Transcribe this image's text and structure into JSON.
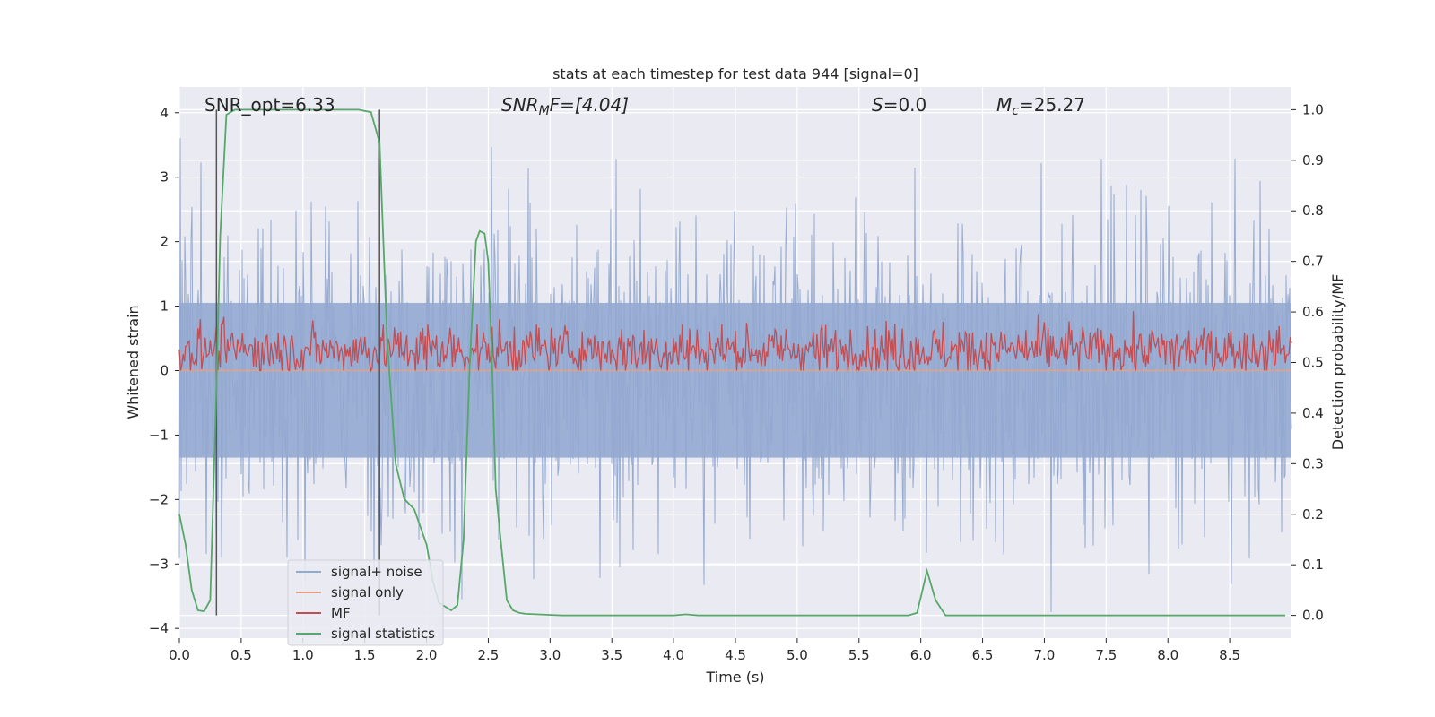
{
  "chart_data": {
    "type": "line",
    "title": "stats at each timestep for test data 944 [signal=0]",
    "xlabel": "Time (s)",
    "ylabel": "Whitened strain",
    "ylabel_right": "Detection probability/MF",
    "xlim": [
      0.0,
      9.0
    ],
    "ylim": [
      -4.15,
      4.4
    ],
    "ylim_right": [
      -0.045,
      1.045
    ],
    "xticks": [
      "0.0",
      "0.5",
      "1.0",
      "1.5",
      "2.0",
      "2.5",
      "3.0",
      "3.5",
      "4.0",
      "4.5",
      "5.0",
      "5.5",
      "6.0",
      "6.5",
      "7.0",
      "7.5",
      "8.0",
      "8.5"
    ],
    "yticks": [
      "4",
      "3",
      "2",
      "1",
      "0",
      "−1",
      "−2",
      "−3",
      "−4"
    ],
    "yticks_right": [
      "1.0",
      "0.9",
      "0.8",
      "0.7",
      "0.6",
      "0.5",
      "0.4",
      "0.3",
      "0.2",
      "0.1",
      "0.0"
    ],
    "grid": true,
    "legend_position": "lower-left",
    "annotations": {
      "snr_opt": "SNR_opt=6.33",
      "snr_mf_prefix": "SNR",
      "snr_mf_sub": "M",
      "snr_mf_suffix": "F=[4.04]",
      "s_prefix": "S",
      "s_suffix": "=0.0",
      "mc_prefix": "M",
      "mc_sub": "c",
      "mc_suffix": "=25.27"
    },
    "vlines_x": [
      0.3,
      1.62
    ],
    "series": [
      {
        "name": "signal+ noise",
        "color": "#94a9d0",
        "axis": "left",
        "description_range": [
          -3.8,
          4.0
        ]
      },
      {
        "name": "signal only",
        "color": "#e8a083",
        "axis": "left",
        "constant_value": 0.0
      },
      {
        "name": "MF",
        "color": "#c44e52",
        "axis": "left",
        "range": [
          0.0,
          0.95
        ]
      },
      {
        "name": "signal statistics",
        "color": "#55a868",
        "axis": "right",
        "x": [
          0.0,
          0.05,
          0.1,
          0.15,
          0.2,
          0.25,
          0.3,
          0.33,
          0.38,
          0.45,
          0.55,
          0.7,
          0.9,
          1.1,
          1.3,
          1.45,
          1.55,
          1.62,
          1.68,
          1.75,
          1.82,
          1.9,
          2.0,
          2.05,
          2.1,
          2.2,
          2.25,
          2.3,
          2.35,
          2.4,
          2.43,
          2.47,
          2.5,
          2.53,
          2.56,
          2.6,
          2.65,
          2.7,
          2.75,
          2.8,
          2.9,
          3.1,
          3.5,
          4.0,
          4.1,
          4.2,
          5.0,
          5.9,
          5.97,
          6.05,
          6.12,
          6.2,
          6.5,
          7.0,
          8.0,
          8.95
        ],
        "values": [
          0.2,
          0.14,
          0.05,
          0.01,
          0.008,
          0.03,
          0.45,
          0.75,
          0.99,
          1.0,
          1.0,
          1.0,
          1.0,
          1.0,
          1.0,
          1.0,
          0.995,
          0.935,
          0.55,
          0.3,
          0.23,
          0.21,
          0.14,
          0.07,
          0.025,
          0.01,
          0.02,
          0.15,
          0.5,
          0.74,
          0.76,
          0.755,
          0.7,
          0.5,
          0.25,
          0.15,
          0.03,
          0.01,
          0.005,
          0.003,
          0.002,
          0.0,
          0.0,
          0.0,
          0.002,
          0.0,
          0.0,
          0.0,
          0.005,
          0.088,
          0.03,
          0.0,
          0.0,
          0.0,
          0.0,
          0.0
        ]
      }
    ]
  }
}
